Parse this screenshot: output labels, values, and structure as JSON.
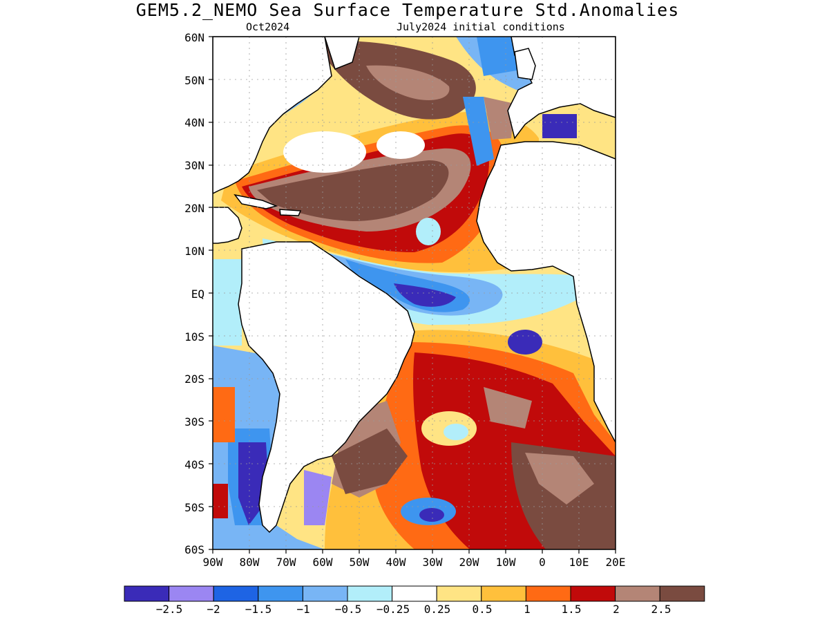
{
  "title": "GEM5.2_NEMO Sea Surface Temperature Std.Anomalies",
  "subtitle_left": "Oct2024",
  "subtitle_right": "July2024 initial conditions",
  "lat_labels": [
    "60N",
    "50N",
    "40N",
    "30N",
    "20N",
    "10N",
    "EQ",
    "10S",
    "20S",
    "30S",
    "40S",
    "50S",
    "60S"
  ],
  "lon_labels": [
    "90W",
    "80W",
    "70W",
    "60W",
    "50W",
    "40W",
    "30W",
    "20W",
    "10W",
    "0",
    "10E",
    "20E"
  ],
  "colorbar": {
    "colors": [
      "#3a2bb8",
      "#9b86f2",
      "#1e64e4",
      "#3e95ef",
      "#78b5f5",
      "#b2eefa",
      "#ffffff",
      "#ffe484",
      "#ffc03c",
      "#ff6a14",
      "#c10a0a",
      "#b48576",
      "#7a4b40"
    ],
    "labels": [
      "−2.5",
      "−2",
      "−1.5",
      "−1",
      "−0.5",
      "−0.25",
      "0.25",
      "0.5",
      "1",
      "1.5",
      "2",
      "2.5"
    ]
  },
  "colors": {
    "land": "#ffffff",
    "coast": "#000000",
    "grid": "#9a9a9a"
  }
}
